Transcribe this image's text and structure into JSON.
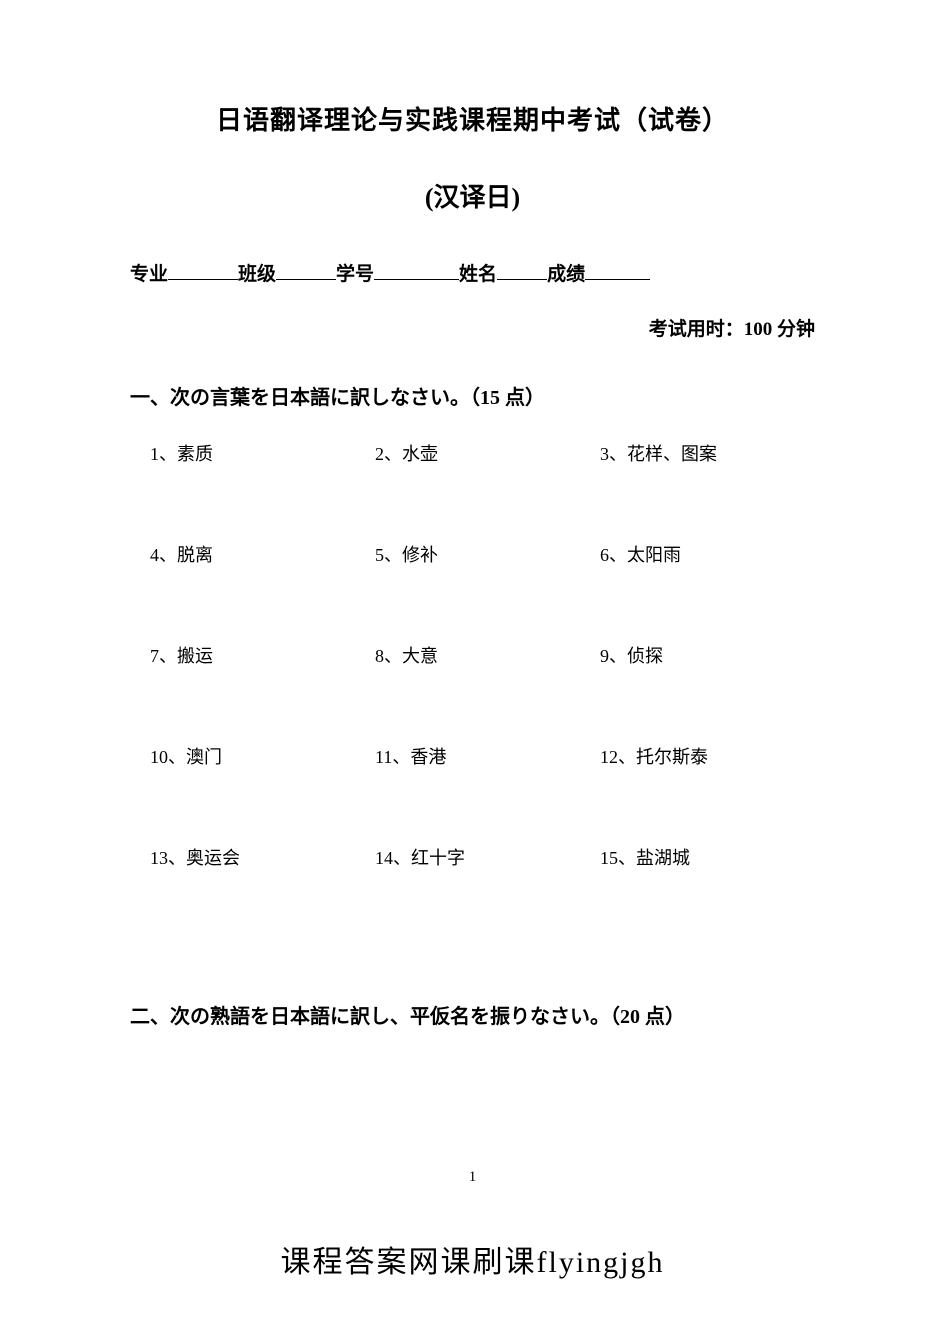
{
  "title": {
    "main": "日语翻译理论与实践课程期中考试（试卷）",
    "sub": "(汉译日)"
  },
  "info": {
    "major_label": "专业",
    "class_label": "班级",
    "id_label": "学号",
    "name_label": "姓名",
    "score_label": "成绩"
  },
  "exam_time": "考试用时：100 分钟",
  "section1": {
    "heading": "一、次の言葉を日本語に訳しなさい。（15 点）",
    "items": [
      "1、素质",
      "2、水壶",
      "3、花样、图案",
      "4、脱离",
      "5、修补",
      "6、太阳雨",
      "7、搬运",
      "8、大意",
      "9、侦探",
      "10、澳门",
      "11、香港",
      "12、托尔斯泰",
      "13、奥运会",
      "14、红十字",
      "15、盐湖城"
    ]
  },
  "section2": {
    "heading": "二、次の熟語を日本語に訳し、平仮名を振りなさい。（20 点）"
  },
  "page_number": "1",
  "footer": "课程答案网课刷课flyingjgh",
  "colors": {
    "background": "#ffffff",
    "text": "#000000"
  },
  "typography": {
    "title_fontsize": 26,
    "body_fontsize": 19,
    "vocab_fontsize": 18,
    "footer_fontsize": 30,
    "font_family": "SimSun"
  }
}
